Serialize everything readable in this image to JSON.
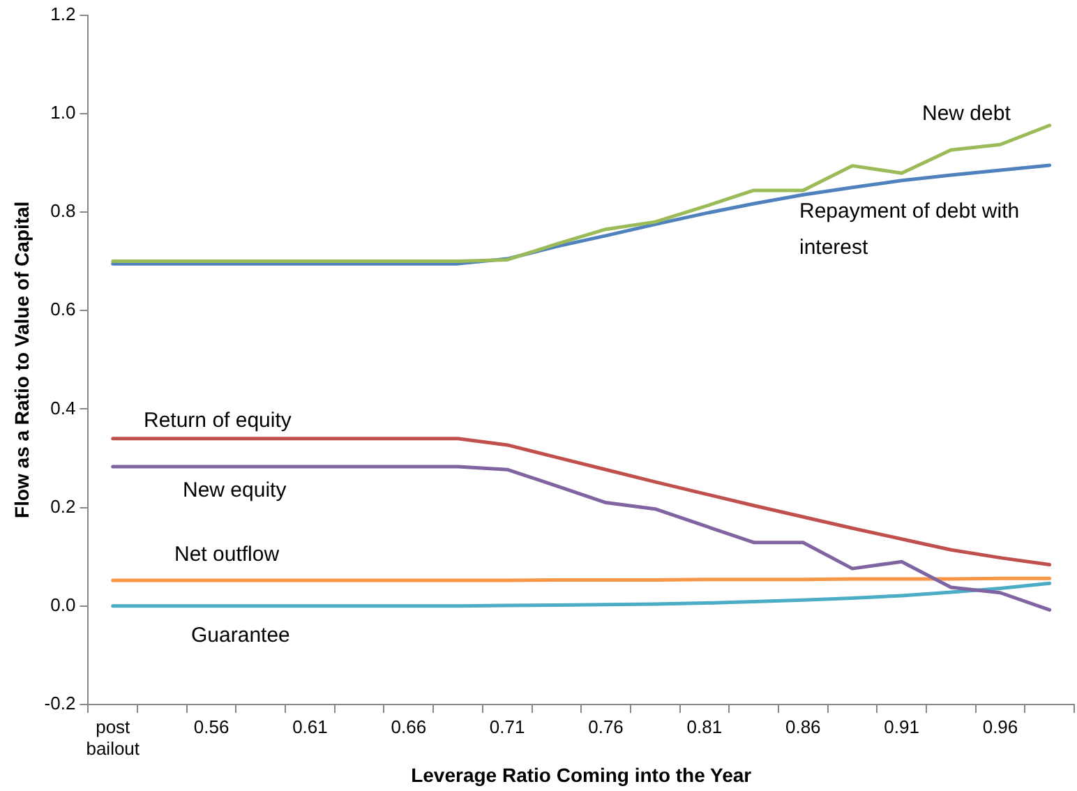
{
  "chart_data": {
    "type": "line",
    "xlabel": "Leverage Ratio Coming into the Year",
    "ylabel": "Flow as a Ratio to Value of Capital",
    "categories": [
      "post bailout",
      null,
      "0.56",
      null,
      "0.61",
      null,
      "0.66",
      null,
      "0.71",
      null,
      "0.76",
      null,
      "0.81",
      null,
      "0.86",
      null,
      "0.91",
      null,
      "0.96",
      null
    ],
    "series": [
      {
        "name": "New debt",
        "color": "#9bbb59",
        "values": [
          0.7,
          0.7,
          0.7,
          0.7,
          0.7,
          0.7,
          0.7,
          0.7,
          0.703,
          0.735,
          0.765,
          0.78,
          0.811,
          0.844,
          0.844,
          0.894,
          0.879,
          0.926,
          0.937,
          0.976
        ]
      },
      {
        "name": "Repayment of debt with interest",
        "color": "#4f81bd",
        "values": [
          0.695,
          0.695,
          0.695,
          0.695,
          0.695,
          0.695,
          0.695,
          0.695,
          0.705,
          0.73,
          0.752,
          0.775,
          0.797,
          0.817,
          0.835,
          0.85,
          0.864,
          0.875,
          0.885,
          0.895
        ]
      },
      {
        "name": "Return of equity",
        "color": "#c0504d",
        "values": [
          0.34,
          0.34,
          0.34,
          0.34,
          0.34,
          0.34,
          0.34,
          0.34,
          0.327,
          0.302,
          0.277,
          0.252,
          0.228,
          0.204,
          0.181,
          0.158,
          0.136,
          0.114,
          0.098,
          0.084
        ]
      },
      {
        "name": "New equity",
        "color": "#8064a2",
        "values": [
          0.283,
          0.283,
          0.283,
          0.283,
          0.283,
          0.283,
          0.283,
          0.283,
          0.277,
          0.244,
          0.21,
          0.197,
          0.163,
          0.129,
          0.129,
          0.076,
          0.09,
          0.038,
          0.027,
          -0.008
        ]
      },
      {
        "name": "Net outflow",
        "color": "#f79646",
        "values": [
          0.052,
          0.052,
          0.052,
          0.052,
          0.052,
          0.052,
          0.052,
          0.052,
          0.052,
          0.053,
          0.053,
          0.053,
          0.054,
          0.054,
          0.054,
          0.055,
          0.055,
          0.055,
          0.056,
          0.056
        ]
      },
      {
        "name": "Guarantee",
        "color": "#4bacc6",
        "values": [
          0,
          0,
          0,
          0,
          0,
          0,
          0,
          0,
          0.001,
          0.002,
          0.003,
          0.004,
          0.006,
          0.009,
          0.012,
          0.016,
          0.021,
          0.028,
          0.036,
          0.046
        ]
      }
    ],
    "ylim": [
      -0.2,
      1.2
    ],
    "yticks": [
      {
        "value": -0.2,
        "label": "-0.2"
      },
      {
        "value": 0,
        "label": "0.0"
      },
      {
        "value": 0.2,
        "label": "0.2"
      },
      {
        "value": 0.4,
        "label": "0.4"
      },
      {
        "value": 0.6,
        "label": "0.6"
      },
      {
        "value": 0.8,
        "label": "0.8"
      },
      {
        "value": 1,
        "label": "1.0"
      },
      {
        "value": 1.2,
        "label": "1.2"
      }
    ],
    "grid": false,
    "legend": false,
    "marker": "none",
    "line_style": "solid"
  }
}
